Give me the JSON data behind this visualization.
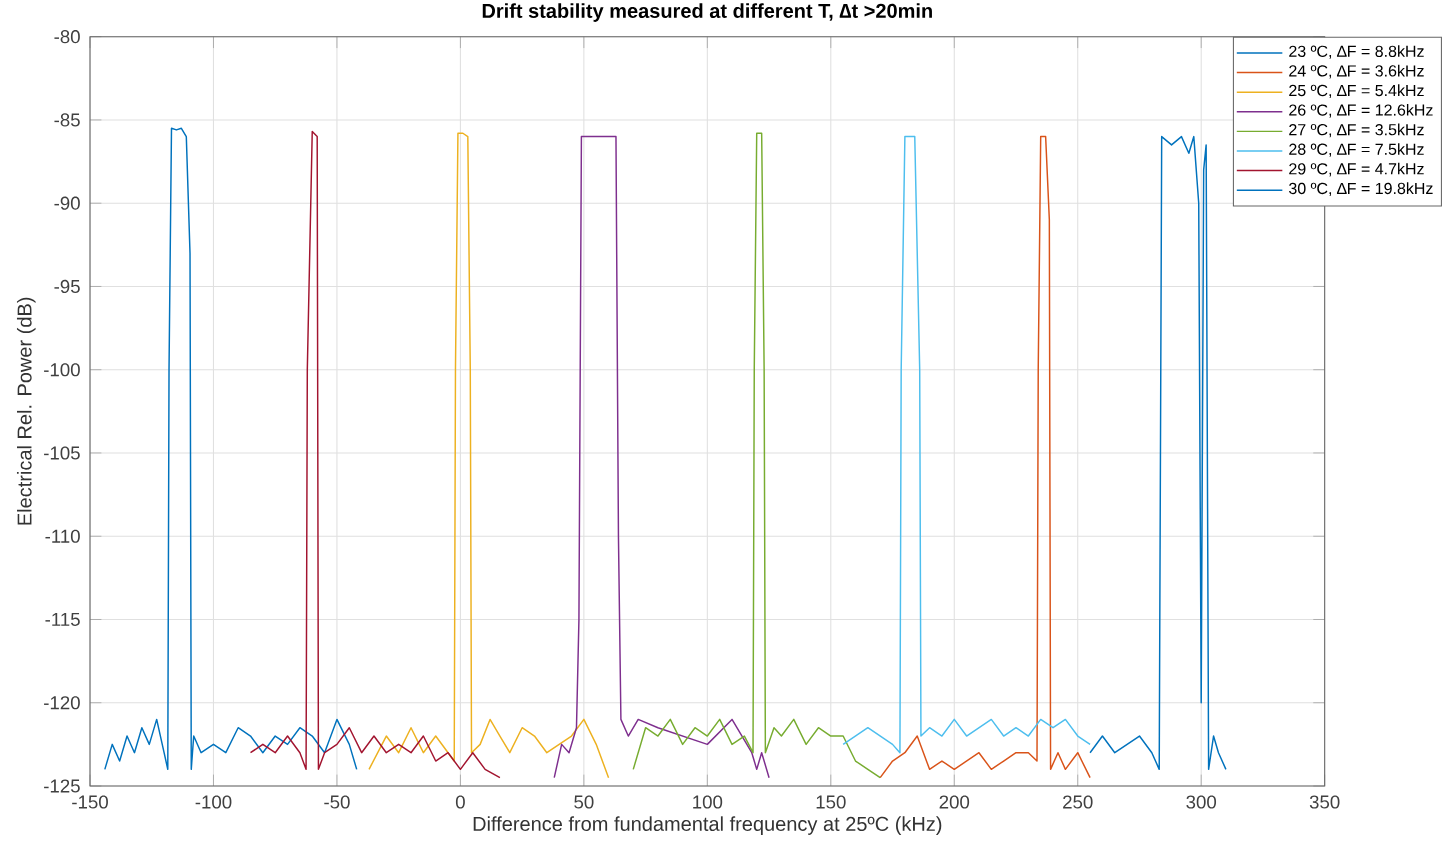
{
  "chart_data": {
    "type": "line",
    "title": "Drift stability measured at different T, ∆t >20min",
    "xlabel": "Difference from fundamental frequency at 25ºC (kHz)",
    "ylabel": "Electrical Rel. Power (dB)",
    "xlim": [
      -150,
      350
    ],
    "xticks": [
      -150,
      -100,
      -50,
      0,
      50,
      100,
      150,
      200,
      250,
      300,
      350
    ],
    "ylim": [
      -125,
      -80
    ],
    "yticks": [
      -125,
      -120,
      -115,
      -110,
      -105,
      -100,
      -95,
      -90,
      -85,
      -80
    ],
    "grid": true,
    "legend": "top right",
    "series": [
      {
        "name": "23 ºC, ∆F = 8.8kHz",
        "color": "#0072bd",
        "x": [
          -144,
          -141,
          -138,
          -135,
          -132,
          -129,
          -126,
          -123,
          -120,
          -118.5,
          -118,
          -117,
          -115,
          -113,
          -111,
          -109.5,
          -109,
          -108,
          -105,
          -100,
          -95,
          -90,
          -85,
          -80,
          -75,
          -70,
          -65,
          -60,
          -55,
          -50,
          -45,
          -42
        ],
        "values": [
          -124,
          -122.5,
          -123.5,
          -122,
          -123,
          -121.5,
          -122.5,
          -121,
          -123,
          -124,
          -100,
          -85.5,
          -85.6,
          -85.5,
          -86,
          -93,
          -124,
          -122,
          -123,
          -122.5,
          -123,
          -121.5,
          -122,
          -123,
          -122,
          -122.5,
          -121.5,
          -122,
          -123,
          -121,
          -122.5,
          -124
        ]
      },
      {
        "name": "24 ºC, ∆F = 3.6kHz",
        "color": "#d95319",
        "x": [
          170,
          175,
          180,
          185,
          190,
          195,
          200,
          205,
          210,
          215,
          220,
          225,
          230,
          233.5,
          234,
          235,
          237,
          238.5,
          239,
          242,
          245,
          250,
          255
        ],
        "values": [
          -124.5,
          -123.5,
          -123,
          -122,
          -124,
          -123.5,
          -124,
          -123.5,
          -123,
          -124,
          -123.5,
          -123,
          -123,
          -123.5,
          -100,
          -86,
          -86,
          -91,
          -124,
          -123,
          -124,
          -123,
          -124.5
        ]
      },
      {
        "name": "25 ºC, ∆F = 5.4kHz",
        "color": "#edb120",
        "x": [
          -37,
          -30,
          -25,
          -20,
          -15,
          -10,
          -5,
          -2.5,
          -2,
          -1,
          1,
          3,
          4,
          4.5,
          8,
          12,
          16,
          20,
          25,
          30,
          35,
          40,
          45,
          50,
          55,
          60
        ],
        "values": [
          -124,
          -122,
          -123,
          -121.5,
          -123,
          -122,
          -123,
          -123.5,
          -100,
          -85.8,
          -85.8,
          -86,
          -100,
          -123,
          -122.5,
          -121,
          -122,
          -123,
          -121.5,
          -122,
          -123,
          -122.5,
          -122,
          -121,
          -122.5,
          -124.5
        ]
      },
      {
        "name": "26 ºC, ∆F = 12.6kHz",
        "color": "#7e2f8e",
        "x": [
          38,
          41,
          44,
          47,
          48,
          49,
          52,
          56,
          60,
          63,
          64,
          65,
          68,
          72,
          80,
          90,
          100,
          110,
          118,
          120,
          122,
          125
        ],
        "values": [
          -124.5,
          -122.5,
          -123,
          -121.5,
          -115,
          -86,
          -86,
          -86,
          -86,
          -86,
          -110,
          -121,
          -122,
          -121,
          -121.5,
          -122,
          -122.5,
          -121,
          -123,
          -124,
          -123,
          -124.5
        ]
      },
      {
        "name": "27 ºC, ∆F = 3.5kHz",
        "color": "#77ac30",
        "x": [
          70,
          75,
          80,
          85,
          90,
          95,
          100,
          105,
          110,
          115,
          118.5,
          119,
          120,
          122,
          123,
          123.5,
          127,
          130,
          135,
          140,
          145,
          150,
          155,
          160,
          165,
          170
        ],
        "values": [
          -124,
          -121.5,
          -122,
          -121,
          -122.5,
          -121.5,
          -122,
          -121,
          -122.5,
          -122,
          -123,
          -100,
          -85.8,
          -85.8,
          -100,
          -123,
          -121.5,
          -122,
          -121,
          -122.5,
          -121.5,
          -122,
          -122,
          -123.5,
          -124,
          -124.5
        ]
      },
      {
        "name": "28 ºC, ∆F = 7.5kHz",
        "color": "#4dbeee",
        "x": [
          155,
          160,
          165,
          170,
          175,
          178,
          178.5,
          180,
          184,
          186,
          186.5,
          190,
          195,
          200,
          205,
          210,
          215,
          220,
          225,
          230,
          235,
          240,
          245,
          250,
          255
        ],
        "values": [
          -122.5,
          -122,
          -121.5,
          -122,
          -122.5,
          -123,
          -100,
          -86,
          -86,
          -100,
          -122,
          -121.5,
          -122,
          -121,
          -122,
          -121.5,
          -121,
          -122,
          -121.5,
          -122,
          -121,
          -121.5,
          -121,
          -122,
          -122.5
        ]
      },
      {
        "name": "29 ºC, ∆F = 4.7kHz",
        "color": "#a2142f",
        "x": [
          -85,
          -80,
          -75,
          -70,
          -65,
          -62.5,
          -62,
          -60,
          -58,
          -57.5,
          -55,
          -50,
          -45,
          -40,
          -35,
          -30,
          -25,
          -20,
          -15,
          -10,
          -5,
          0,
          5,
          10,
          16
        ],
        "values": [
          -123,
          -122.5,
          -123,
          -122,
          -123,
          -124,
          -100,
          -85.7,
          -86,
          -124,
          -123,
          -122.5,
          -121.5,
          -123,
          -122,
          -123,
          -122.5,
          -123,
          -122,
          -123.5,
          -123,
          -124,
          -123,
          -124,
          -124.5
        ]
      },
      {
        "name": "30 ºC, ∆F = 19.8kHz",
        "color": "#0072bd",
        "x": [
          255,
          260,
          265,
          270,
          275,
          280,
          283,
          284,
          288,
          292,
          295,
          297,
          299,
          300,
          301,
          302,
          303,
          305,
          307,
          310
        ],
        "values": [
          -123,
          -122,
          -123,
          -122.5,
          -122,
          -123,
          -124,
          -86,
          -86.5,
          -86,
          -87,
          -86,
          -90,
          -120,
          -88,
          -86.5,
          -124,
          -122,
          -123,
          -124
        ]
      }
    ]
  }
}
